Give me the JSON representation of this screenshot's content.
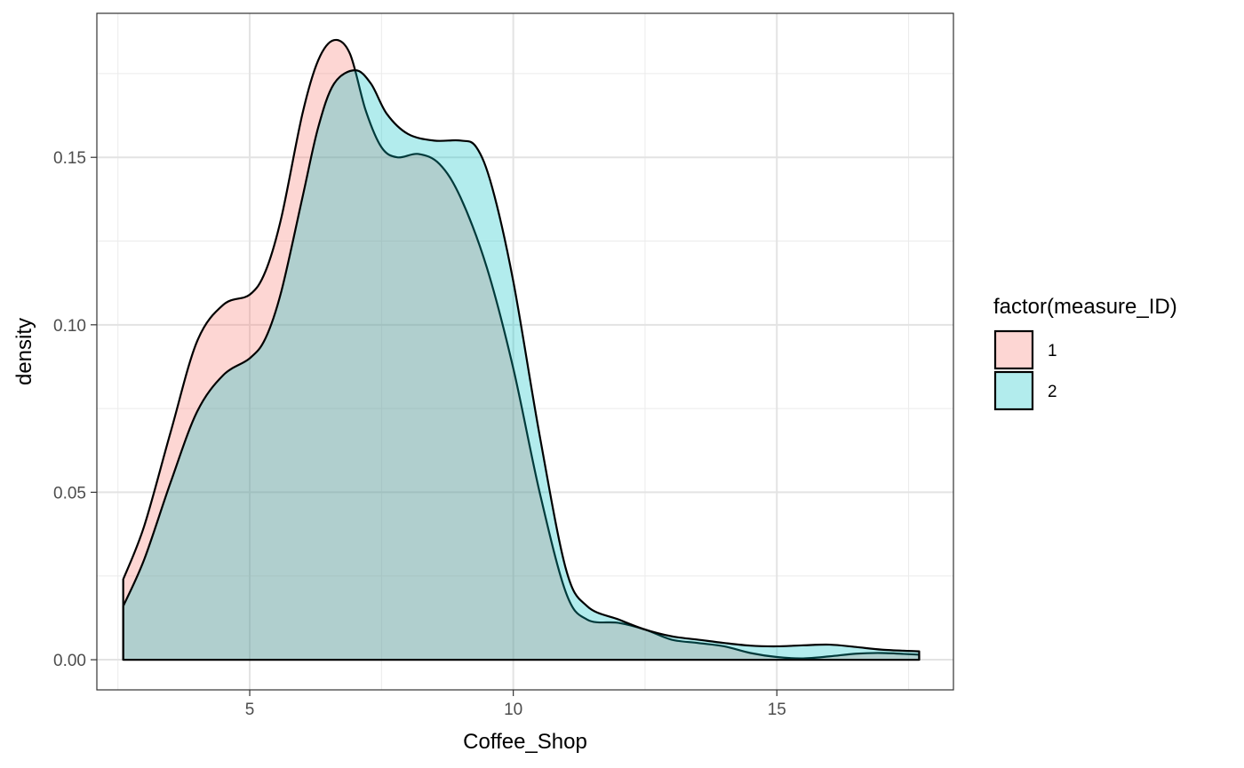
{
  "chart_data": {
    "type": "area",
    "subtype": "density",
    "xlabel": "Coffee_Shop",
    "ylabel": "density",
    "xlim": [
      2.1,
      18.35
    ],
    "ylim": [
      -0.009,
      0.193
    ],
    "x_ticks": [
      5,
      10,
      15
    ],
    "x_tick_labels": [
      "5",
      "10",
      "15"
    ],
    "y_ticks": [
      0,
      0.05,
      0.1,
      0.15
    ],
    "y_tick_labels": [
      "0.00",
      "0.05",
      "0.10",
      "0.15"
    ],
    "grid": true,
    "legend": {
      "title": "factor(measure_ID)",
      "placement": "right",
      "entries": [
        "1",
        "2"
      ]
    },
    "series": [
      {
        "name": "1",
        "color": "#F8766D",
        "points": [
          [
            2.6,
            0.024
          ],
          [
            3.0,
            0.04
          ],
          [
            3.5,
            0.068
          ],
          [
            4.0,
            0.095
          ],
          [
            4.5,
            0.106
          ],
          [
            5.0,
            0.109
          ],
          [
            5.3,
            0.116
          ],
          [
            5.6,
            0.132
          ],
          [
            6.0,
            0.163
          ],
          [
            6.3,
            0.179
          ],
          [
            6.6,
            0.185
          ],
          [
            6.9,
            0.181
          ],
          [
            7.2,
            0.164
          ],
          [
            7.5,
            0.153
          ],
          [
            7.8,
            0.15
          ],
          [
            8.2,
            0.151
          ],
          [
            8.6,
            0.148
          ],
          [
            9.0,
            0.138
          ],
          [
            9.5,
            0.117
          ],
          [
            10.0,
            0.087
          ],
          [
            10.5,
            0.05
          ],
          [
            11.0,
            0.02
          ],
          [
            11.4,
            0.012
          ],
          [
            12.0,
            0.011
          ],
          [
            12.5,
            0.009
          ],
          [
            13.0,
            0.006
          ],
          [
            13.5,
            0.005
          ],
          [
            14.0,
            0.004
          ],
          [
            14.5,
            0.002
          ],
          [
            15.0,
            0.0008
          ],
          [
            15.5,
            0.0004
          ],
          [
            16.0,
            0.001
          ],
          [
            16.5,
            0.0018
          ],
          [
            17.0,
            0.002
          ],
          [
            17.7,
            0.0015
          ]
        ]
      },
      {
        "name": "2",
        "color": "#00BFC4",
        "points": [
          [
            2.6,
            0.016
          ],
          [
            3.0,
            0.03
          ],
          [
            3.5,
            0.053
          ],
          [
            4.0,
            0.074
          ],
          [
            4.5,
            0.085
          ],
          [
            5.0,
            0.09
          ],
          [
            5.3,
            0.096
          ],
          [
            5.6,
            0.11
          ],
          [
            6.0,
            0.138
          ],
          [
            6.3,
            0.159
          ],
          [
            6.6,
            0.172
          ],
          [
            7.0,
            0.176
          ],
          [
            7.3,
            0.172
          ],
          [
            7.6,
            0.163
          ],
          [
            8.0,
            0.157
          ],
          [
            8.5,
            0.155
          ],
          [
            9.0,
            0.155
          ],
          [
            9.3,
            0.153
          ],
          [
            9.6,
            0.141
          ],
          [
            10.0,
            0.113
          ],
          [
            10.5,
            0.067
          ],
          [
            11.0,
            0.027
          ],
          [
            11.4,
            0.016
          ],
          [
            12.0,
            0.012
          ],
          [
            12.5,
            0.009
          ],
          [
            13.0,
            0.007
          ],
          [
            13.5,
            0.006
          ],
          [
            14.0,
            0.005
          ],
          [
            14.5,
            0.0042
          ],
          [
            15.0,
            0.004
          ],
          [
            15.5,
            0.0043
          ],
          [
            16.0,
            0.0045
          ],
          [
            16.5,
            0.0038
          ],
          [
            17.0,
            0.003
          ],
          [
            17.7,
            0.0025
          ]
        ]
      }
    ]
  }
}
